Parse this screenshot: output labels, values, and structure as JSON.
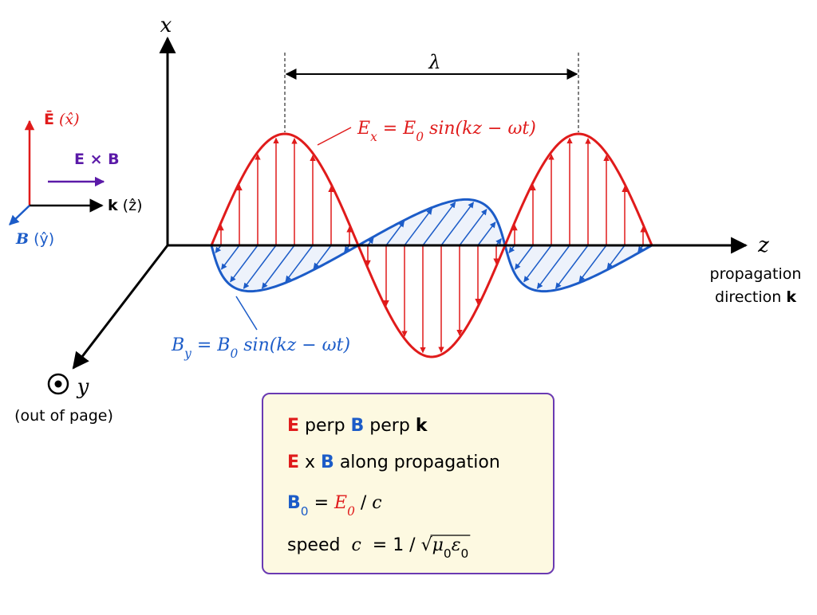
{
  "axes": {
    "x": "x",
    "z": "z",
    "y": "y",
    "y_note": "(out of page)",
    "z_note": [
      "propagation",
      "direction ",
      "k"
    ]
  },
  "wavelength": "λ",
  "e_equation": [
    "E",
    "x",
    " = E",
    "0",
    " sin(kz − ωt)"
  ],
  "b_equation": [
    "B",
    "y",
    " = B",
    "0",
    " sin(kz − ωt)"
  ],
  "legend": {
    "e": [
      "Ē",
      " (x̂)"
    ],
    "exb": "E × B",
    "k": [
      "k",
      " (ẑ)"
    ],
    "b": [
      "B",
      " (ŷ)"
    ]
  },
  "summary": [
    [
      "E",
      " perp ",
      "B",
      " perp ",
      "k"
    ],
    [
      "E",
      " x ",
      "B",
      " along propagation"
    ],
    [
      "B",
      "0",
      " = ",
      "E",
      "0",
      " / ",
      "c"
    ],
    [
      "speed  ",
      "c",
      "  = 1 / √",
      "μ",
      "0",
      "ε",
      "0"
    ]
  ]
}
